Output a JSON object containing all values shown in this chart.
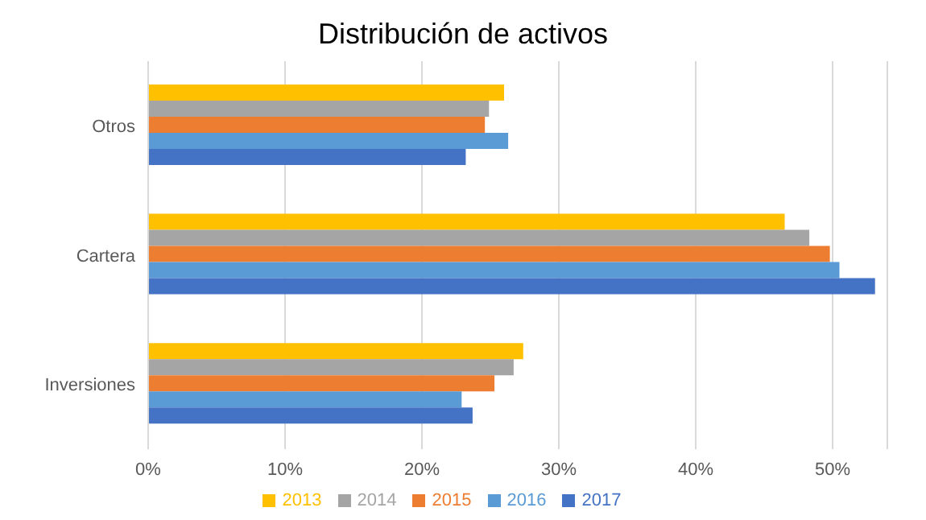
{
  "chart_data": {
    "type": "bar",
    "orientation": "horizontal",
    "title": "Distribución de activos",
    "categories": [
      "Otros",
      "Cartera",
      "Inversiones"
    ],
    "series": [
      {
        "name": "2013",
        "color": "#ffc000",
        "values": [
          26.0,
          46.5,
          27.4
        ]
      },
      {
        "name": "2014",
        "color": "#a5a5a5",
        "values": [
          24.9,
          48.3,
          26.7
        ]
      },
      {
        "name": "2015",
        "color": "#ed7d31",
        "values": [
          24.6,
          49.8,
          25.3
        ]
      },
      {
        "name": "2016",
        "color": "#5b9bd5",
        "values": [
          26.3,
          50.5,
          22.9
        ]
      },
      {
        "name": "2017",
        "color": "#4472c4",
        "values": [
          23.2,
          53.1,
          23.7
        ]
      }
    ],
    "xlim": [
      0,
      54
    ],
    "xticks": [
      {
        "value": 0,
        "label": "0%"
      },
      {
        "value": 10,
        "label": "10%"
      },
      {
        "value": 20,
        "label": "20%"
      },
      {
        "value": 30,
        "label": "30%"
      },
      {
        "value": 40,
        "label": "40%"
      },
      {
        "value": 50,
        "label": "50%"
      }
    ],
    "grid": "x",
    "legend": "bottom"
  }
}
